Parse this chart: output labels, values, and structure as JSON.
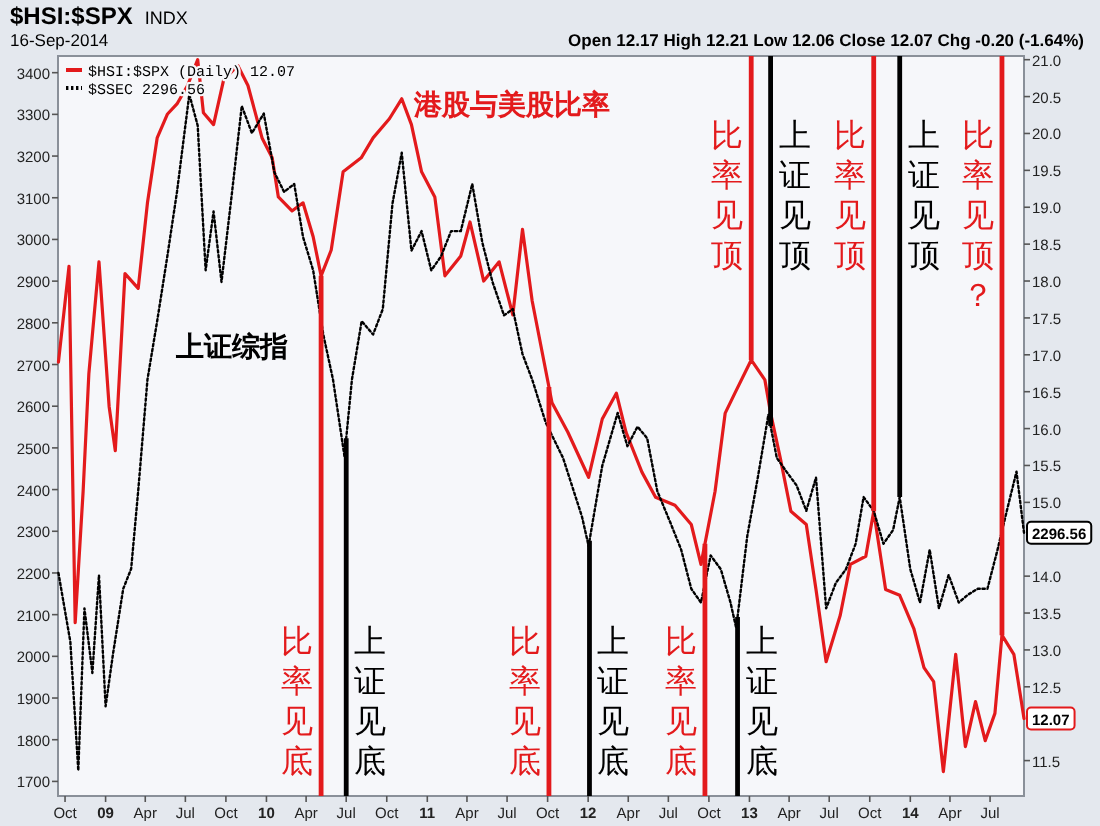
{
  "chart_data": {
    "type": "line",
    "title": "$HSI:$SPX",
    "annotations": [
      "INDX",
      "16-Sep-2014",
      "Open 12.17  High 12.21  Low 12.06  Close 12.07  Chg -0.20 (-1.64%)",
      "港股与美股比率",
      "上证综指"
    ],
    "xlim": [
      "2008-09-15",
      "2014-09-16"
    ],
    "xticks": [
      {
        "value": "2008-10-01",
        "label": "Oct"
      },
      {
        "value": "2009-01-01",
        "label": "09"
      },
      {
        "value": "2009-04-01",
        "label": "Apr"
      },
      {
        "value": "2009-07-01",
        "label": "Jul"
      },
      {
        "value": "2009-10-01",
        "label": "Oct"
      },
      {
        "value": "2010-01-01",
        "label": "10"
      },
      {
        "value": "2010-04-01",
        "label": "Apr"
      },
      {
        "value": "2010-07-01",
        "label": "Jul"
      },
      {
        "value": "2010-10-01",
        "label": "Oct"
      },
      {
        "value": "2011-01-01",
        "label": "11"
      },
      {
        "value": "2011-04-01",
        "label": "Apr"
      },
      {
        "value": "2011-07-01",
        "label": "Jul"
      },
      {
        "value": "2011-10-01",
        "label": "Oct"
      },
      {
        "value": "2012-01-01",
        "label": "12"
      },
      {
        "value": "2012-04-01",
        "label": "Apr"
      },
      {
        "value": "2012-07-01",
        "label": "Jul"
      },
      {
        "value": "2012-10-01",
        "label": "Oct"
      },
      {
        "value": "2013-01-01",
        "label": "13"
      },
      {
        "value": "2013-04-01",
        "label": "Apr"
      },
      {
        "value": "2013-07-01",
        "label": "Jul"
      },
      {
        "value": "2013-10-01",
        "label": "Oct"
      },
      {
        "value": "2014-01-01",
        "label": "14"
      },
      {
        "value": "2014-04-01",
        "label": "Apr"
      },
      {
        "value": "2014-07-01",
        "label": "Jul"
      }
    ],
    "ylim": [
      1665,
      3440
    ],
    "yticks": [
      1700,
      1800,
      1900,
      2000,
      2100,
      2200,
      2300,
      2400,
      2500,
      2600,
      2700,
      2800,
      2900,
      3000,
      3100,
      3200,
      3300,
      3400
    ],
    "y2lim": [
      11.02,
      21.05
    ],
    "y2ticks": [
      11.5,
      12.5,
      {
        "value": 13,
        "label": "13.0"
      },
      13.5,
      {
        "value": 14,
        "label": "14.0"
      },
      {
        "value": 15,
        "label": "15.0"
      },
      15.5,
      {
        "value": 16,
        "label": "16.0"
      },
      16.5,
      {
        "value": 17,
        "label": "17.0"
      },
      17.5,
      {
        "value": 18,
        "label": "18.0"
      },
      18.5,
      {
        "value": 19,
        "label": "19.0"
      },
      19.5,
      {
        "value": 20,
        "label": "20.0"
      },
      20.5,
      {
        "value": 21,
        "label": "21.0"
      }
    ],
    "legend": "top left",
    "series": [
      {
        "name": "$HSI:$SPX (Daily) 12.07",
        "color": "#e31a1c",
        "axis": "y2",
        "line_style": "solid",
        "x": [
          "2008-09-16",
          "2008-10-10",
          "2008-10-24",
          "2008-11-11",
          "2008-11-24",
          "2008-12-17",
          "2009-01-09",
          "2009-01-23",
          "2009-02-14",
          "2009-03-16",
          "2009-04-06",
          "2009-04-28",
          "2009-05-21",
          "2009-06-12",
          "2009-07-06",
          "2009-07-29",
          "2009-08-11",
          "2009-09-03",
          "2009-09-26",
          "2009-10-28",
          "2009-11-20",
          "2009-12-22",
          "2010-01-14",
          "2010-01-28",
          "2010-02-28",
          "2010-03-25",
          "2010-04-17",
          "2010-05-05",
          "2010-05-28",
          "2010-06-24",
          "2010-08-04",
          "2010-08-31",
          "2010-10-07",
          "2010-11-04",
          "2010-11-26",
          "2010-12-19",
          "2011-01-18",
          "2011-02-10",
          "2011-03-18",
          "2011-04-08",
          "2011-05-09",
          "2011-06-13",
          "2011-07-14",
          "2011-08-05",
          "2011-08-27",
          "2011-10-11",
          "2011-11-16",
          "2012-01-02",
          "2012-02-02",
          "2012-03-05",
          "2012-03-27",
          "2012-05-02",
          "2012-06-02",
          "2012-07-16",
          "2012-08-22",
          "2012-09-13",
          "2012-10-15",
          "2012-11-07",
          "2012-11-29",
          "2013-01-05",
          "2013-02-05",
          "2013-02-18",
          "2013-03-12",
          "2013-04-05",
          "2013-05-10",
          "2013-06-01",
          "2013-06-24",
          "2013-07-26",
          "2013-08-18",
          "2013-09-22",
          "2013-10-10",
          "2013-11-06",
          "2013-12-08",
          "2014-01-09",
          "2014-02-01",
          "2014-02-23",
          "2014-03-17",
          "2014-04-14",
          "2014-05-06",
          "2014-05-29",
          "2014-06-20",
          "2014-07-12",
          "2014-07-28",
          "2014-08-24",
          "2014-09-10",
          "2014-09-16"
        ],
        "values": [
          16.9,
          18.2,
          13.37,
          15.15,
          16.74,
          18.26,
          16.3,
          15.7,
          18.1,
          17.9,
          19.06,
          19.94,
          20.26,
          20.4,
          20.65,
          21.0,
          20.28,
          20.12,
          20.73,
          20.92,
          20.65,
          19.94,
          19.67,
          19.14,
          18.95,
          19.06,
          18.6,
          18.07,
          18.42,
          19.48,
          19.67,
          19.94,
          20.2,
          20.47,
          20.12,
          19.48,
          19.14,
          18.07,
          18.34,
          18.8,
          18.0,
          18.26,
          17.54,
          18.7,
          17.73,
          16.35,
          15.95,
          15.34,
          16.13,
          16.48,
          15.95,
          15.41,
          15.07,
          14.96,
          14.7,
          14.16,
          15.15,
          16.21,
          16.48,
          16.93,
          16.66,
          16.21,
          15.6,
          14.88,
          14.7,
          13.82,
          12.84,
          13.47,
          14.16,
          14.27,
          14.88,
          13.82,
          13.74,
          13.29,
          12.76,
          12.57,
          11.35,
          12.94,
          11.69,
          12.3,
          11.77,
          12.14,
          13.2,
          12.94,
          12.3,
          12.07
        ],
        "value_labels": [
          null,
          null,
          null,
          null,
          null,
          null,
          null,
          null,
          null,
          null,
          null,
          null,
          null,
          null,
          null,
          null,
          null,
          null,
          null,
          null,
          null,
          null,
          null,
          null,
          null,
          null,
          null,
          null,
          null,
          null,
          null,
          null,
          null,
          null,
          null,
          null,
          null,
          null,
          null,
          null,
          null,
          null,
          null,
          null,
          null,
          null,
          null,
          null,
          null,
          null,
          null,
          null,
          null,
          null,
          null,
          null,
          null,
          null,
          null,
          null,
          null,
          null,
          null,
          null,
          null,
          null,
          null,
          null,
          null,
          null,
          null,
          null,
          null,
          null,
          null,
          null,
          null,
          null,
          null,
          null,
          null,
          null,
          null,
          null,
          null,
          "12.07"
        ]
      },
      {
        "name": "$SSEC 2296.56",
        "color": "#000000",
        "axis": "y",
        "line_style": "dotted",
        "x": [
          "2008-09-16",
          "2008-10-13",
          "2008-10-31",
          "2008-11-14",
          "2008-12-02",
          "2008-12-17",
          "2009-01-01",
          "2009-01-18",
          "2009-02-10",
          "2009-02-28",
          "2009-03-16",
          "2009-04-06",
          "2009-04-28",
          "2009-05-21",
          "2009-06-12",
          "2009-07-10",
          "2009-07-29",
          "2009-08-16",
          "2009-09-03",
          "2009-09-21",
          "2009-10-15",
          "2009-11-06",
          "2009-11-29",
          "2009-12-26",
          "2010-01-19",
          "2010-02-10",
          "2010-03-05",
          "2010-03-25",
          "2010-04-17",
          "2010-05-10",
          "2010-06-01",
          "2010-06-27",
          "2010-07-14",
          "2010-08-05",
          "2010-08-31",
          "2010-09-22",
          "2010-10-14",
          "2010-11-04",
          "2010-11-26",
          "2010-12-19",
          "2011-01-10",
          "2011-02-01",
          "2011-02-24",
          "2011-03-18",
          "2011-04-13",
          "2011-05-06",
          "2011-05-29",
          "2011-06-24",
          "2011-07-14",
          "2011-08-05",
          "2011-08-27",
          "2011-09-27",
          "2011-11-05",
          "2011-12-18",
          "2012-01-02",
          "2012-02-02",
          "2012-02-24",
          "2012-03-08",
          "2012-03-30",
          "2012-04-22",
          "2012-05-14",
          "2012-06-06",
          "2012-07-07",
          "2012-07-30",
          "2012-08-22",
          "2012-09-13",
          "2012-10-05",
          "2012-10-28",
          "2012-11-19",
          "2012-12-02",
          "2012-12-27",
          "2013-01-20",
          "2013-02-13",
          "2013-03-04",
          "2013-03-26",
          "2013-04-18",
          "2013-05-10",
          "2013-06-01",
          "2013-06-24",
          "2013-07-16",
          "2013-08-08",
          "2013-08-30",
          "2013-09-17",
          "2013-10-10",
          "2013-11-01",
          "2013-11-23",
          "2013-12-08",
          "2014-01-01",
          "2014-01-23",
          "2014-02-14",
          "2014-03-07",
          "2014-03-29",
          "2014-04-21",
          "2014-05-12",
          "2014-06-03",
          "2014-06-25",
          "2014-07-18",
          "2014-08-08",
          "2014-08-30",
          "2014-09-16"
        ],
        "values": [
          2200,
          2035,
          1726,
          2115,
          1960,
          2195,
          1880,
          2007,
          2162,
          2210,
          2397,
          2664,
          2804,
          2959,
          3114,
          3348,
          3273,
          2926,
          3067,
          2898,
          3114,
          3320,
          3255,
          3302,
          3161,
          3114,
          3133,
          3006,
          2926,
          2772,
          2664,
          2480,
          2664,
          2804,
          2772,
          2833,
          3086,
          3208,
          2973,
          3020,
          2926,
          2959,
          3020,
          3020,
          3133,
          2992,
          2898,
          2818,
          2833,
          2725,
          2664,
          2560,
          2476,
          2335,
          2265,
          2457,
          2537,
          2584,
          2504,
          2551,
          2523,
          2396,
          2317,
          2256,
          2162,
          2129,
          2242,
          2209,
          2129,
          2068,
          2288,
          2429,
          2580,
          2476,
          2443,
          2410,
          2349,
          2429,
          2115,
          2176,
          2209,
          2270,
          2382,
          2349,
          2270,
          2303,
          2382,
          2209,
          2129,
          2256,
          2115,
          2195,
          2129,
          2148,
          2162,
          2162,
          2256,
          2349,
          2443,
          2296.56
        ],
        "value_labels": [
          null,
          null,
          null,
          null,
          null,
          null,
          null,
          null,
          null,
          null,
          null,
          null,
          null,
          null,
          null,
          null,
          null,
          null,
          null,
          null,
          null,
          null,
          null,
          null,
          null,
          null,
          null,
          null,
          null,
          null,
          null,
          null,
          null,
          null,
          null,
          null,
          null,
          null,
          null,
          null,
          null,
          null,
          null,
          null,
          null,
          null,
          null,
          null,
          null,
          null,
          null,
          null,
          null,
          null,
          null,
          null,
          null,
          null,
          null,
          null,
          null,
          null,
          null,
          null,
          null,
          null,
          null,
          null,
          null,
          null,
          null,
          null,
          null,
          null,
          null,
          null,
          null,
          null,
          null,
          null,
          null,
          null,
          null,
          null,
          null,
          null,
          null,
          null,
          null,
          null,
          null,
          null,
          null,
          null,
          null,
          null,
          null,
          null,
          null,
          "2296.56"
        ]
      }
    ],
    "ref_lines": [
      {
        "axis": "x",
        "value": "2010-05-05",
        "label": "比率见底",
        "color": "#e31a1c"
      },
      {
        "axis": "x",
        "value": "2010-07-01",
        "label": "上证见底",
        "color": "#000000"
      },
      {
        "axis": "x",
        "value": "2011-10-04",
        "label": "比率见底",
        "color": "#e31a1c"
      },
      {
        "axis": "x",
        "value": "2012-01-04",
        "label": "上证见底",
        "color": "#000000"
      },
      {
        "axis": "x",
        "value": "2012-09-22",
        "label": "比率见底",
        "color": "#e31a1c"
      },
      {
        "axis": "x",
        "value": "2012-12-05",
        "label": "上证见底",
        "color": "#000000"
      },
      {
        "axis": "x",
        "value": "2013-01-05",
        "label": "比率见顶",
        "color": "#e31a1c"
      },
      {
        "axis": "x",
        "value": "2013-02-18",
        "label": "上证见顶",
        "color": "#000000"
      },
      {
        "axis": "x",
        "value": "2013-10-10",
        "label": "比率见顶",
        "color": "#e31a1c"
      },
      {
        "axis": "x",
        "value": "2013-12-08",
        "label": "上证见顶",
        "color": "#000000"
      },
      {
        "axis": "x",
        "value": "2014-07-28",
        "label": "比率见顶？",
        "color": "#e31a1c"
      }
    ]
  }
}
